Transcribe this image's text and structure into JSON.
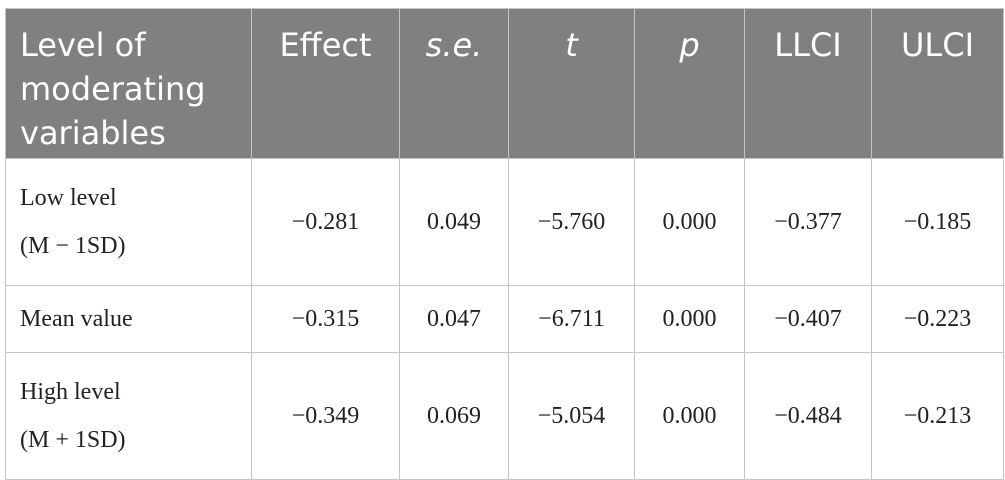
{
  "table": {
    "headers": [
      {
        "lines": [
          "Level of",
          "moderating",
          "variables"
        ],
        "italic": false
      },
      {
        "lines": [
          "Effect"
        ],
        "italic": false
      },
      {
        "lines": [
          "s.e."
        ],
        "italic": true
      },
      {
        "lines": [
          "t"
        ],
        "italic": true
      },
      {
        "lines": [
          "p"
        ],
        "italic": true
      },
      {
        "lines": [
          "LLCI"
        ],
        "italic": false
      },
      {
        "lines": [
          "ULCI"
        ],
        "italic": false
      }
    ],
    "rows": [
      {
        "label_lines": [
          "Low level",
          "(M − 1SD)"
        ],
        "values": [
          "−0.281",
          "0.049",
          "−5.760",
          "0.000",
          "−0.377",
          "−0.185"
        ]
      },
      {
        "label_lines": [
          "Mean value"
        ],
        "values": [
          "−0.315",
          "0.047",
          "−6.711",
          "0.000",
          "−0.407",
          "−0.223"
        ]
      },
      {
        "label_lines": [
          "High level",
          "(M + 1SD)"
        ],
        "values": [
          "−0.349",
          "0.069",
          "−5.054",
          "0.000",
          "−0.484",
          "−0.213"
        ]
      }
    ]
  },
  "colors": {
    "header_background": "#808080",
    "header_text": "#ffffff",
    "border": "#c4c4c4",
    "body_text": "#222222"
  }
}
